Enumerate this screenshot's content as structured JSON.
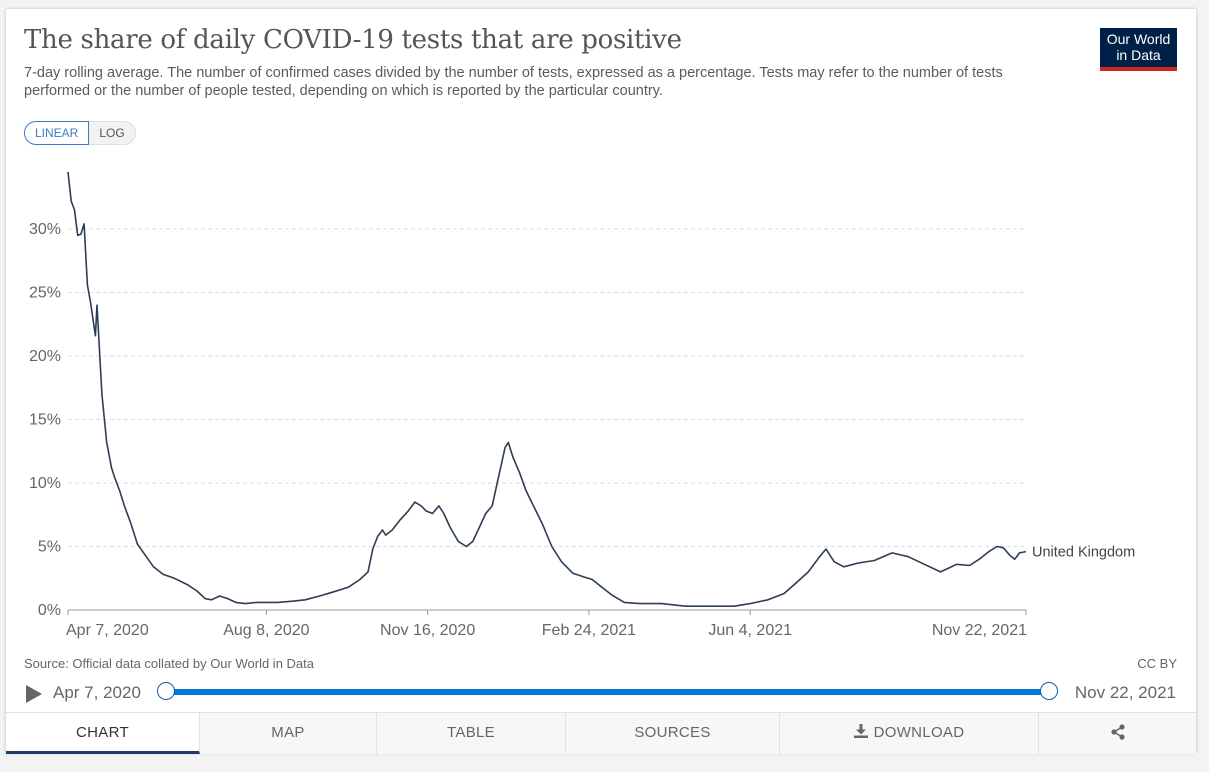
{
  "title": "The share of daily COVID-19 tests that are positive",
  "subtitle": "7-day rolling average. The number of confirmed cases divided by the number of tests, expressed as a percentage. Tests may refer to the number of tests performed or the number of people tested, depending on which is reported by the particular country.",
  "logo": {
    "line1": "Our World",
    "line2": "in Data",
    "bg_color": "#002147",
    "accent_color": "#ce261e"
  },
  "scale_toggle": {
    "linear_label": "LINEAR",
    "log_label": "LOG",
    "selected": "LINEAR"
  },
  "footer": {
    "source": "Source: Official data collated by Our World in Data",
    "license": "CC BY"
  },
  "timeline": {
    "start_label": "Apr 7, 2020",
    "end_label": "Nov 22, 2021",
    "play_icon": "play-icon"
  },
  "tabs": [
    {
      "label": "CHART",
      "icon": "",
      "active": true
    },
    {
      "label": "MAP",
      "icon": "",
      "active": false
    },
    {
      "label": "TABLE",
      "icon": "",
      "active": false
    },
    {
      "label": "SOURCES",
      "icon": "",
      "active": false
    },
    {
      "label": "DOWNLOAD",
      "icon": "download-icon",
      "active": false
    },
    {
      "label": "",
      "icon": "share-icon",
      "active": false
    }
  ],
  "chart_data": {
    "type": "line",
    "x_type": "date",
    "xlim": [
      "2020-04-07",
      "2021-11-22"
    ],
    "ylim": [
      0,
      30
    ],
    "y_ticks": [
      0,
      5,
      10,
      15,
      20,
      25,
      30
    ],
    "y_tick_labels": [
      "0%",
      "5%",
      "10%",
      "15%",
      "20%",
      "25%",
      "30%"
    ],
    "x_ticks": [
      "2020-04-07",
      "2020-08-08",
      "2020-11-16",
      "2021-02-24",
      "2021-06-04",
      "2021-11-22"
    ],
    "x_tick_labels": [
      "Apr 7, 2020",
      "Aug 8, 2020",
      "Nov 16, 2020",
      "Feb 24, 2021",
      "Jun 4, 2021",
      "Nov 22, 2021"
    ],
    "grid": {
      "horizontal": true,
      "vertical": false
    },
    "line_color": "#2d3e53",
    "series": [
      {
        "name": "United Kingdom",
        "points": [
          [
            "2020-04-07",
            34.5
          ],
          [
            "2020-04-09",
            32.2
          ],
          [
            "2020-04-11",
            31.5
          ],
          [
            "2020-04-13",
            29.5
          ],
          [
            "2020-04-15",
            29.6
          ],
          [
            "2020-04-17",
            30.4
          ],
          [
            "2020-04-19",
            25.6
          ],
          [
            "2020-04-21",
            24.2
          ],
          [
            "2020-04-24",
            21.6
          ],
          [
            "2020-04-25",
            24.0
          ],
          [
            "2020-04-28",
            17.0
          ],
          [
            "2020-05-01",
            13.2
          ],
          [
            "2020-05-04",
            11.2
          ],
          [
            "2020-05-06",
            10.4
          ],
          [
            "2020-05-09",
            9.4
          ],
          [
            "2020-05-12",
            8.2
          ],
          [
            "2020-05-16",
            6.8
          ],
          [
            "2020-05-20",
            5.2
          ],
          [
            "2020-05-25",
            4.3
          ],
          [
            "2020-05-30",
            3.4
          ],
          [
            "2020-06-05",
            2.8
          ],
          [
            "2020-06-12",
            2.5
          ],
          [
            "2020-06-20",
            2.0
          ],
          [
            "2020-06-26",
            1.5
          ],
          [
            "2020-07-01",
            0.9
          ],
          [
            "2020-07-05",
            0.8
          ],
          [
            "2020-07-10",
            1.1
          ],
          [
            "2020-07-15",
            0.9
          ],
          [
            "2020-07-20",
            0.6
          ],
          [
            "2020-07-26",
            0.5
          ],
          [
            "2020-08-02",
            0.6
          ],
          [
            "2020-08-15",
            0.6
          ],
          [
            "2020-08-25",
            0.7
          ],
          [
            "2020-09-01",
            0.8
          ],
          [
            "2020-09-10",
            1.1
          ],
          [
            "2020-09-18",
            1.4
          ],
          [
            "2020-09-28",
            1.8
          ],
          [
            "2020-10-05",
            2.4
          ],
          [
            "2020-10-10",
            3.0
          ],
          [
            "2020-10-13",
            4.8
          ],
          [
            "2020-10-16",
            5.8
          ],
          [
            "2020-10-19",
            6.3
          ],
          [
            "2020-10-21",
            5.9
          ],
          [
            "2020-10-25",
            6.3
          ],
          [
            "2020-10-30",
            7.1
          ],
          [
            "2020-11-04",
            7.8
          ],
          [
            "2020-11-08",
            8.5
          ],
          [
            "2020-11-12",
            8.2
          ],
          [
            "2020-11-15",
            7.8
          ],
          [
            "2020-11-19",
            7.6
          ],
          [
            "2020-11-23",
            8.2
          ],
          [
            "2020-11-26",
            7.6
          ],
          [
            "2020-11-30",
            6.5
          ],
          [
            "2020-12-05",
            5.4
          ],
          [
            "2020-12-10",
            5.0
          ],
          [
            "2020-12-14",
            5.4
          ],
          [
            "2020-12-18",
            6.5
          ],
          [
            "2020-12-22",
            7.6
          ],
          [
            "2020-12-26",
            8.2
          ],
          [
            "2020-12-30",
            10.5
          ],
          [
            "2021-01-03",
            12.8
          ],
          [
            "2021-01-05",
            13.2
          ],
          [
            "2021-01-08",
            12.0
          ],
          [
            "2021-01-12",
            10.8
          ],
          [
            "2021-01-16",
            9.4
          ],
          [
            "2021-01-21",
            8.1
          ],
          [
            "2021-01-26",
            6.8
          ],
          [
            "2021-02-01",
            5.0
          ],
          [
            "2021-02-07",
            3.8
          ],
          [
            "2021-02-14",
            2.9
          ],
          [
            "2021-02-21",
            2.6
          ],
          [
            "2021-02-26",
            2.4
          ],
          [
            "2021-03-03",
            1.9
          ],
          [
            "2021-03-10",
            1.2
          ],
          [
            "2021-03-18",
            0.6
          ],
          [
            "2021-03-28",
            0.5
          ],
          [
            "2021-04-10",
            0.5
          ],
          [
            "2021-04-25",
            0.3
          ],
          [
            "2021-05-10",
            0.3
          ],
          [
            "2021-05-25",
            0.3
          ],
          [
            "2021-06-04",
            0.5
          ],
          [
            "2021-06-15",
            0.8
          ],
          [
            "2021-06-25",
            1.3
          ],
          [
            "2021-07-03",
            2.2
          ],
          [
            "2021-07-10",
            3.0
          ],
          [
            "2021-07-17",
            4.2
          ],
          [
            "2021-07-21",
            4.8
          ],
          [
            "2021-07-26",
            3.8
          ],
          [
            "2021-08-01",
            3.4
          ],
          [
            "2021-08-10",
            3.7
          ],
          [
            "2021-08-20",
            3.9
          ],
          [
            "2021-08-31",
            4.5
          ],
          [
            "2021-09-10",
            4.2
          ],
          [
            "2021-09-20",
            3.6
          ],
          [
            "2021-09-30",
            3.0
          ],
          [
            "2021-10-05",
            3.3
          ],
          [
            "2021-10-10",
            3.6
          ],
          [
            "2021-10-18",
            3.5
          ],
          [
            "2021-10-24",
            4.0
          ],
          [
            "2021-10-30",
            4.6
          ],
          [
            "2021-11-04",
            5.0
          ],
          [
            "2021-11-08",
            4.9
          ],
          [
            "2021-11-12",
            4.3
          ],
          [
            "2021-11-15",
            4.0
          ],
          [
            "2021-11-18",
            4.5
          ],
          [
            "2021-11-22",
            4.6
          ]
        ]
      }
    ]
  }
}
